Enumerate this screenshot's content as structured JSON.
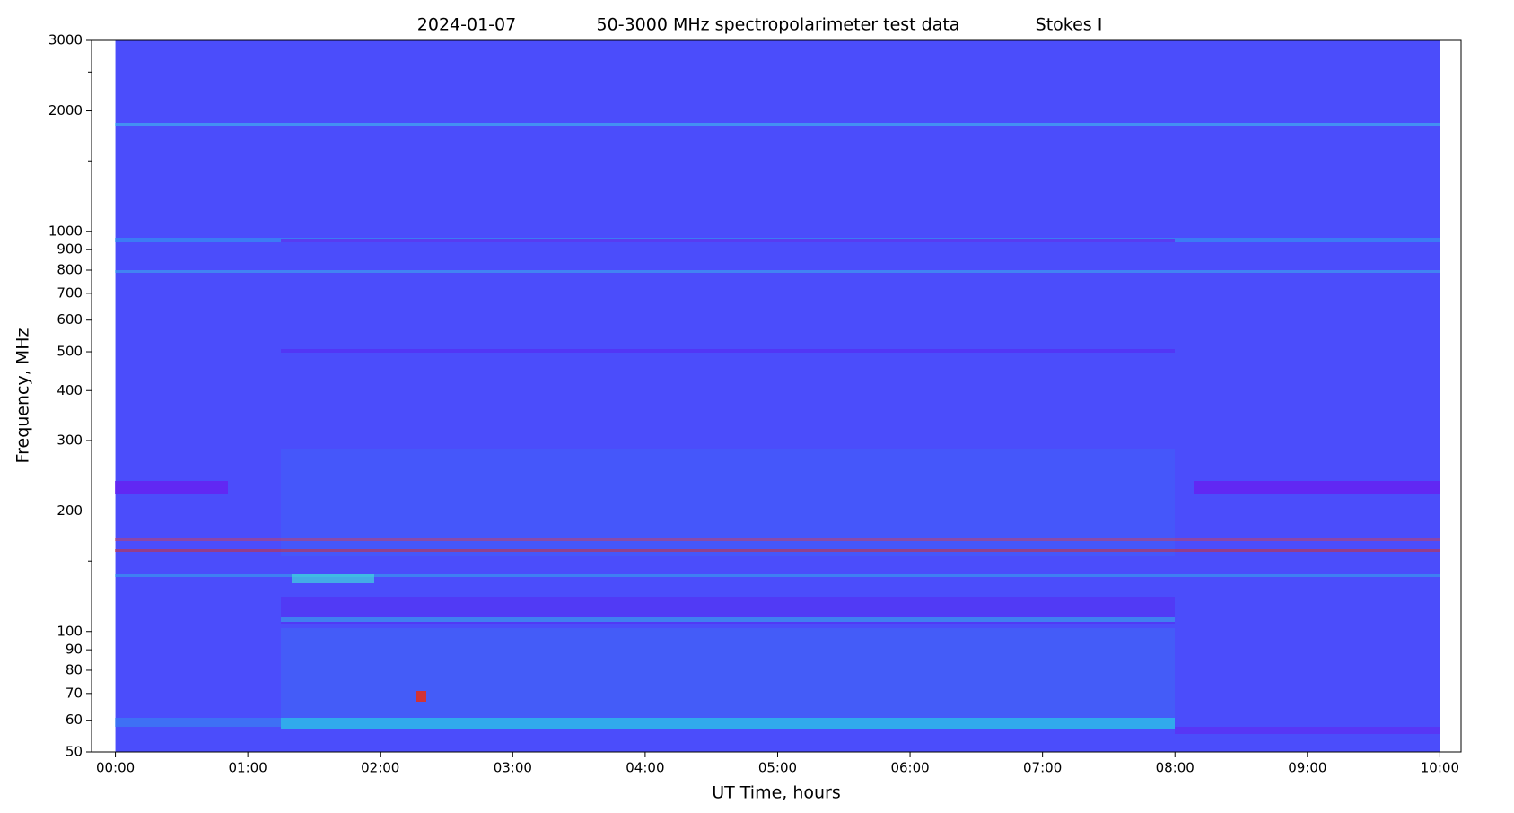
{
  "chart_data": {
    "type": "spectrogram",
    "title": [
      "2024-01-07",
      "50-3000 MHz spectropolarimeter test data",
      "Stokes I"
    ],
    "xlabel": "UT Time, hours",
    "ylabel": "Frequency, MHz",
    "x": [
      0,
      10
    ],
    "xlim": [
      -0.18,
      10.16
    ],
    "xticks": [
      {
        "value": 0,
        "label": "00:00"
      },
      {
        "value": 1,
        "label": "01:00"
      },
      {
        "value": 2,
        "label": "02:00"
      },
      {
        "value": 3,
        "label": "03:00"
      },
      {
        "value": 4,
        "label": "04:00"
      },
      {
        "value": 5,
        "label": "05:00"
      },
      {
        "value": 6,
        "label": "06:00"
      },
      {
        "value": 7,
        "label": "07:00"
      },
      {
        "value": 8,
        "label": "08:00"
      },
      {
        "value": 9,
        "label": "09:00"
      },
      {
        "value": 10,
        "label": "10:00"
      }
    ],
    "ylim": [
      50,
      3000
    ],
    "ylog": true,
    "yticks": [
      50,
      60,
      70,
      80,
      90,
      100,
      200,
      300,
      400,
      500,
      600,
      700,
      800,
      900,
      1000,
      2000,
      3000
    ],
    "yminor_ticks": [
      150,
      1500,
      2500
    ],
    "color": "#4b4dfb"
  }
}
